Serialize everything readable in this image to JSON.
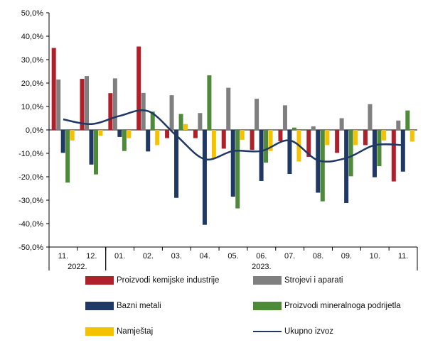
{
  "chart_data": {
    "type": "bar",
    "categories": [
      "11.",
      "12.",
      "01.",
      "02.",
      "03.",
      "04.",
      "05.",
      "06.",
      "07.",
      "08.",
      "09.",
      "10.",
      "11."
    ],
    "year_groups": [
      {
        "label": "2022.",
        "from": 0,
        "to": 1
      },
      {
        "label": "2023.",
        "from": 2,
        "to": 12
      }
    ],
    "ylim": [
      -50,
      50
    ],
    "yticks": [
      "-50,0%",
      "-40,0%",
      "-30,0%",
      "-20,0%",
      "-10,0%",
      "0,0%",
      "10,0%",
      "20,0%",
      "30,0%",
      "40,0%",
      "50,0%"
    ],
    "series": [
      {
        "name": "Proizvodi kemijske industrije",
        "color": "#b0202a",
        "kind": "bar",
        "values": [
          35.0,
          21.8,
          15.7,
          35.6,
          -3.5,
          -3.5,
          -8.0,
          -8.5,
          -4.8,
          -11.5,
          -9.8,
          -6.5,
          -22.0
        ]
      },
      {
        "name": "Strojevi i aparati",
        "color": "#7f7f7f",
        "kind": "bar",
        "values": [
          21.5,
          23.0,
          22.0,
          15.8,
          14.8,
          7.2,
          18.0,
          13.3,
          10.5,
          1.5,
          5.0,
          11.0,
          4.0
        ]
      },
      {
        "name": "Bazni metali",
        "color": "#1f3864",
        "kind": "bar",
        "values": [
          -9.8,
          -14.8,
          -3.0,
          -9.2,
          -29.0,
          -40.5,
          -28.5,
          -21.8,
          -18.8,
          -26.8,
          -31.2,
          -20.2,
          -17.8
        ]
      },
      {
        "name": "Proizvodi mineralnoga podrijetla",
        "color": "#4e8a3a",
        "kind": "bar",
        "values": [
          -22.5,
          -19.0,
          -9.0,
          7.8,
          6.8,
          23.3,
          -33.5,
          -14.0,
          1.0,
          -30.5,
          -19.8,
          -15.5,
          8.3
        ]
      },
      {
        "name": "Namještaj",
        "color": "#f5c200",
        "kind": "bar",
        "values": [
          -4.5,
          -2.5,
          -3.5,
          -6.5,
          2.5,
          -12.0,
          -4.2,
          -9.0,
          -13.5,
          -6.5,
          -6.5,
          -4.5,
          -5.0
        ]
      },
      {
        "name": "Ukupno izvoz",
        "color": "#1f3864",
        "kind": "line",
        "values": [
          4.5,
          2.5,
          6.0,
          8.0,
          -2.5,
          -12.5,
          -9.0,
          -9.0,
          -4.5,
          -13.0,
          -12.0,
          -6.5,
          -6.5
        ]
      }
    ],
    "legend_layout": [
      [
        "Proizvodi kemijske industrije",
        "Strojevi i aparati"
      ],
      [
        "Bazni metali",
        "Proizvodi mineralnoga podrijetla"
      ],
      [
        "Namještaj",
        "Ukupno izvoz"
      ]
    ],
    "grid": false
  }
}
